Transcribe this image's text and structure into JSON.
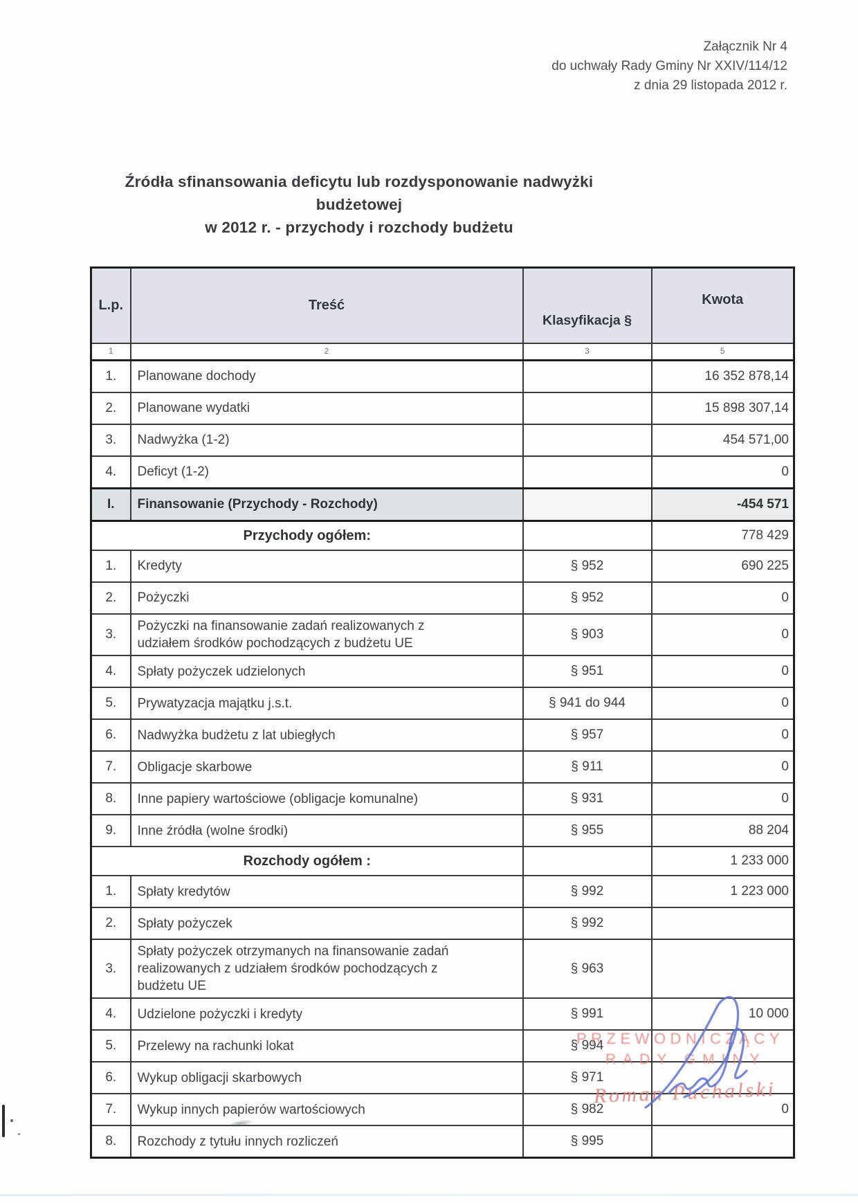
{
  "page": {
    "attachment": [
      "Załącznik Nr 4",
      "do uchwały Rady Gminy Nr XXIV/114/12",
      "z dnia 29 listopada 2012 r."
    ],
    "title_line1": "Źródła sfinansowania deficytu lub rozdysponowanie nadwyżki budżetowej",
    "title_line2": "w 2012 r. - przychody i rozchody budżetu"
  },
  "table": {
    "headers": {
      "lp": "L.p.",
      "tresc": "Treść",
      "klasyfikacja": "Klasyfikacja §",
      "kwota": "Kwota"
    },
    "column_numbers": [
      "1",
      "2",
      "3",
      "5"
    ],
    "rows": [
      {
        "type": "plain",
        "lp": "1.",
        "tresc": "Planowane dochody",
        "klasyfikacja": "",
        "kwota": "16 352 878,14"
      },
      {
        "type": "plain",
        "lp": "2.",
        "tresc": "Planowane wydatki",
        "klasyfikacja": "",
        "kwota": "15 898 307,14"
      },
      {
        "type": "plain",
        "lp": "3.",
        "tresc": "Nadwyżka (1-2)",
        "klasyfikacja": "",
        "kwota": "454 571,00"
      },
      {
        "type": "plain",
        "lp": "4.",
        "tresc": "Deficyt (1-2)",
        "klasyfikacja": "",
        "kwota": "0"
      },
      {
        "type": "highlight",
        "lp": "I.",
        "tresc": "Finansowanie (Przychody - Rozchody)",
        "klasyfikacja": "",
        "kwota": "-454 571"
      },
      {
        "type": "subtotal",
        "tresc": "Przychody ogółem:",
        "klasyfikacja": "",
        "kwota": "778 429"
      },
      {
        "type": "plain",
        "lp": "1.",
        "tresc": "Kredyty",
        "klasyfikacja": "§ 952",
        "kwota": "690 225"
      },
      {
        "type": "plain",
        "lp": "2.",
        "tresc": "Pożyczki",
        "klasyfikacja": "§ 952",
        "kwota": "0"
      },
      {
        "type": "plain",
        "lp": "3.",
        "tresc": "Pożyczki na finansowanie zadań realizowanych z udziałem środków pochodzących z budżetu UE",
        "klasyfikacja": "§ 903",
        "kwota": "0"
      },
      {
        "type": "plain",
        "lp": "4.",
        "tresc": "Spłaty pożyczek udzielonych",
        "klasyfikacja": "§ 951",
        "kwota": "0"
      },
      {
        "type": "plain",
        "lp": "5.",
        "tresc": "Prywatyzacja majątku j.s.t.",
        "klasyfikacja": "§ 941 do 944",
        "kwota": "0"
      },
      {
        "type": "plain",
        "lp": "6.",
        "tresc": "Nadwyżka budżetu z lat ubiegłych",
        "klasyfikacja": "§ 957",
        "kwota": "0"
      },
      {
        "type": "plain",
        "lp": "7.",
        "tresc": "Obligacje skarbowe",
        "klasyfikacja": "§ 911",
        "kwota": "0"
      },
      {
        "type": "plain",
        "lp": "8.",
        "tresc": "Inne papiery wartościowe (obligacje komunalne)",
        "klasyfikacja": "§ 931",
        "kwota": "0"
      },
      {
        "type": "plain",
        "lp": "9.",
        "tresc": "Inne źródła (wolne środki)",
        "klasyfikacja": "§ 955",
        "kwota": "88 204"
      },
      {
        "type": "subtotal",
        "tresc": "Rozchody ogółem :",
        "klasyfikacja": "",
        "kwota": "1 233 000"
      },
      {
        "type": "plain",
        "lp": "1.",
        "tresc": "Spłaty kredytów",
        "klasyfikacja": "§ 992",
        "kwota": "1 223 000"
      },
      {
        "type": "plain",
        "lp": "2.",
        "tresc": "Spłaty pożyczek",
        "klasyfikacja": "§ 992",
        "kwota": ""
      },
      {
        "type": "plain",
        "lp": "3.",
        "tresc": "Spłaty pożyczek otrzymanych na finansowanie zadań realizowanych z udziałem środków pochodzących z budżetu UE",
        "klasyfikacja": "§ 963",
        "kwota": ""
      },
      {
        "type": "plain",
        "lp": "4.",
        "tresc": "Udzielone pożyczki i kredyty",
        "klasyfikacja": "§ 991",
        "kwota": "10 000"
      },
      {
        "type": "plain",
        "lp": "5.",
        "tresc": "Przelewy na rachunki lokat",
        "klasyfikacja": "§ 994",
        "kwota": ""
      },
      {
        "type": "plain",
        "lp": "6.",
        "tresc": "Wykup obligacji skarbowych",
        "klasyfikacja": "§ 971",
        "kwota": ""
      },
      {
        "type": "plain",
        "lp": "7.",
        "tresc": "Wykup innych papierów wartościowych",
        "klasyfikacja": "§ 982",
        "kwota": "0"
      },
      {
        "type": "plain",
        "lp": "8.",
        "tresc": "Rozchody z tytułu innych rozliczeń",
        "klasyfikacja": "§ 995",
        "kwota": ""
      }
    ]
  },
  "signature": {
    "stamp_title_line1": "PRZEWODNICZĄCY",
    "stamp_title_line2": "RADY GMINY",
    "stamp_name": "Roman Puchalski",
    "stamp_color": "#e07e79",
    "ink_color": "#5f73cd"
  }
}
